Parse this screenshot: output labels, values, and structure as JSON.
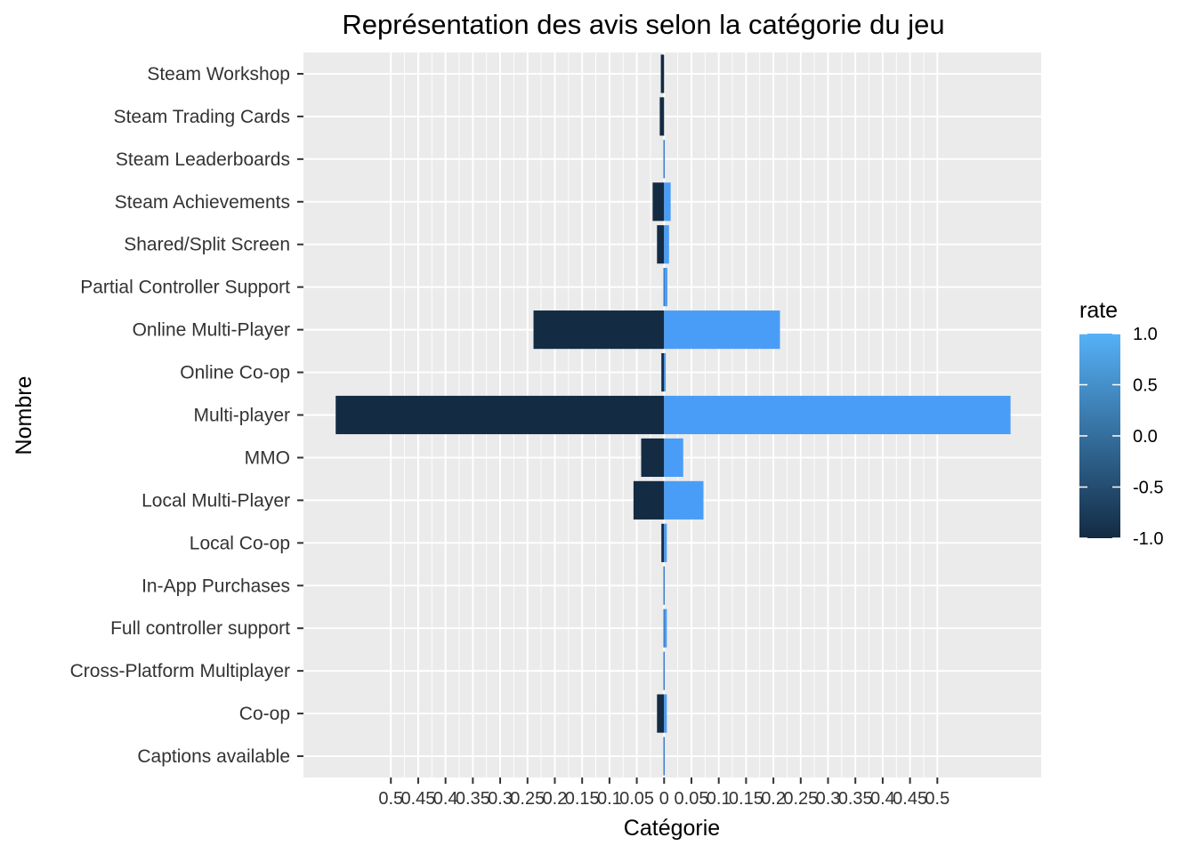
{
  "chart_data": {
    "type": "bar",
    "orientation": "horizontal",
    "title": "Représentation des avis selon la catégorie du jeu",
    "xlabel": "Catégorie",
    "ylabel": "Nombre",
    "xlim": [
      -0.66,
      0.69
    ],
    "x_ticks": [
      -0.5,
      -0.45,
      -0.4,
      -0.35,
      -0.3,
      -0.25,
      -0.2,
      -0.15,
      -0.1,
      -0.05,
      0,
      0.05,
      0.1,
      0.15,
      0.2,
      0.25,
      0.3,
      0.35,
      0.4,
      0.45,
      0.5
    ],
    "x_tick_labels": [
      "0.5",
      "0.45",
      "0.4",
      "0.35",
      "0.3",
      "0.25",
      "0.2",
      "0.15",
      "0.1",
      "0.05",
      "0",
      "0.05",
      "0.1",
      "0.15",
      "0.2",
      "0.25",
      "0.3",
      "0.35",
      "0.4",
      "0.45",
      "0.5"
    ],
    "grid": true,
    "categories": [
      "Steam Workshop",
      "Steam Trading Cards",
      "Steam Leaderboards",
      "Steam Achievements",
      "Shared/Split Screen",
      "Partial Controller Support",
      "Online Multi-Player",
      "Online Co-op",
      "Multi-player",
      "MMO",
      "Local Multi-Player",
      "Local Co-op",
      "In-App Purchases",
      "Full controller support",
      "Cross-Platform Multiplayer",
      "Co-op",
      "Captions available"
    ],
    "series": [
      {
        "rate": -1,
        "color": "#132B43",
        "values": [
          -0.006,
          -0.008,
          -0.001,
          -0.021,
          -0.013,
          -0.001,
          -0.239,
          -0.005,
          -0.601,
          -0.042,
          -0.056,
          -0.005,
          -0.001,
          -0.001,
          -0.001,
          -0.013,
          -0.001
        ]
      },
      {
        "rate": 1,
        "color": "#4A9DF6",
        "values": [
          0.0,
          0.0,
          0.001,
          0.012,
          0.009,
          0.006,
          0.212,
          0.003,
          0.634,
          0.035,
          0.072,
          0.005,
          0.001,
          0.005,
          0.001,
          0.005,
          0.001
        ]
      }
    ],
    "legend": {
      "title": "rate",
      "placement": "right",
      "gradient_low": "#132B43",
      "gradient_high": "#56B1F7",
      "ticks": [
        1.0,
        0.5,
        0.0,
        -0.5,
        -1.0
      ],
      "tick_labels": [
        "1.0",
        "0.5",
        "0.0",
        "-0.5",
        "-1.0"
      ]
    }
  }
}
